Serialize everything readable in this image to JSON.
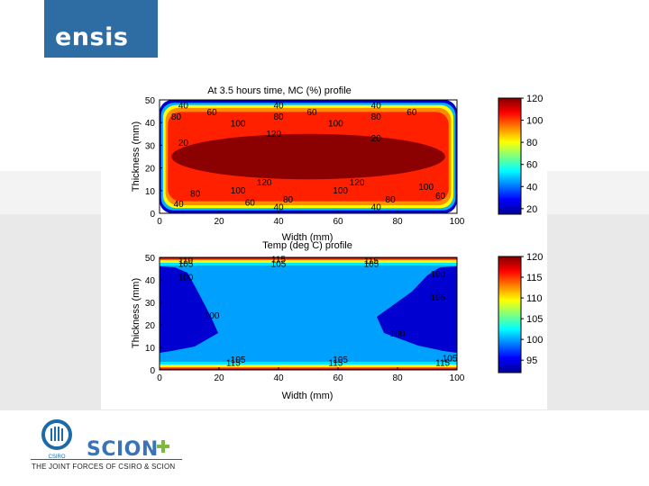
{
  "brand": {
    "logo_text": "ensis"
  },
  "footer": {
    "csiro_label": "CSIRO",
    "scion_label": "SCION",
    "tagline": "THE JOINT FORCES OF CSIRO & SCION"
  },
  "colors": {
    "brand_blue": "#2e6da4",
    "scion_blue": "#3a73b8",
    "scion_green": "#7cba3c"
  },
  "chart_data": [
    {
      "type": "heatmap",
      "title": "At 3.5 hours time, MC (%) profile",
      "xlabel": "Width (mm)",
      "ylabel": "Thickness (mm)",
      "xlim": [
        0,
        100
      ],
      "ylim": [
        0,
        50
      ],
      "x_ticks": [
        "0",
        "20",
        "40",
        "60",
        "80",
        "100"
      ],
      "y_ticks": [
        "0",
        "10",
        "20",
        "30",
        "40",
        "50"
      ],
      "colorbar": {
        "range": [
          15,
          120
        ],
        "ticks": [
          "20",
          "40",
          "60",
          "80",
          "100",
          "120"
        ]
      },
      "levels": [
        {
          "value": 20,
          "color": "#0000c8",
          "dx": 0,
          "dy": 0
        },
        {
          "value": 40,
          "color": "#00b4ff",
          "dx": 0.5,
          "dy": 1.3
        },
        {
          "value": 60,
          "color": "#ffff00",
          "dx": 1.2,
          "dy": 2.3
        },
        {
          "value": 80,
          "color": "#ff8c00",
          "dx": 2.0,
          "dy": 3.5
        },
        {
          "value": 100,
          "color": "#ff2000",
          "dx": 2.8,
          "dy": 5.3
        },
        {
          "value": 120,
          "color": "#8b0000",
          "dx": 4.0,
          "dy": 15.0
        }
      ],
      "contour_labels": [
        {
          "text": "40",
          "x": 10,
          "y": 47.5
        },
        {
          "text": "60",
          "x": 22,
          "y": 44.5
        },
        {
          "text": "80",
          "x": 7,
          "y": 42.5
        },
        {
          "text": "100",
          "x": 33,
          "y": 39.5
        },
        {
          "text": "40",
          "x": 50,
          "y": 47.5
        },
        {
          "text": "80",
          "x": 50,
          "y": 42.5
        },
        {
          "text": "60",
          "x": 64,
          "y": 44.5
        },
        {
          "text": "100",
          "x": 74,
          "y": 39.5
        },
        {
          "text": "40",
          "x": 91,
          "y": 47.5
        },
        {
          "text": "80",
          "x": 91,
          "y": 42.5
        },
        {
          "text": "60",
          "x": 106,
          "y": 44.5
        },
        {
          "text": "120",
          "x": 48,
          "y": 35
        },
        {
          "text": "20",
          "x": 91,
          "y": 33
        },
        {
          "text": "20",
          "x": 10,
          "y": 31
        },
        {
          "text": "120",
          "x": 44,
          "y": 13.5
        },
        {
          "text": "100",
          "x": 33,
          "y": 10
        },
        {
          "text": "120",
          "x": 83,
          "y": 13.5
        },
        {
          "text": "100",
          "x": 76,
          "y": 10
        },
        {
          "text": "100",
          "x": 112,
          "y": 11.5
        },
        {
          "text": "80",
          "x": 15,
          "y": 8.5
        },
        {
          "text": "60",
          "x": 38,
          "y": 4.5
        },
        {
          "text": "80",
          "x": 54,
          "y": 6
        },
        {
          "text": "80",
          "x": 97,
          "y": 6
        },
        {
          "text": "60",
          "x": 118,
          "y": 7.5
        },
        {
          "text": "40",
          "x": 50,
          "y": 2.5
        },
        {
          "text": "40",
          "x": 91,
          "y": 2.5
        },
        {
          "text": "40",
          "x": 8,
          "y": 4
        }
      ]
    },
    {
      "type": "heatmap",
      "title": "Temp (deg C) profile",
      "xlabel": "Width (mm)",
      "ylabel": "Thickness (mm)",
      "xlim": [
        0,
        100
      ],
      "ylim": [
        0,
        50
      ],
      "x_ticks": [
        "0",
        "20",
        "40",
        "60",
        "80",
        "100"
      ],
      "y_ticks": [
        "0",
        "10",
        "20",
        "30",
        "40",
        "50"
      ],
      "colorbar": {
        "range": [
          92,
          120
        ],
        "ticks": [
          "95",
          "100",
          "105",
          "110",
          "115",
          "120"
        ]
      },
      "contour_labels": [
        {
          "text": "110",
          "x": 11,
          "y": 48.5
        },
        {
          "text": "105",
          "x": 11,
          "y": 47
        },
        {
          "text": "115",
          "x": 50,
          "y": 49
        },
        {
          "text": "105",
          "x": 50,
          "y": 47
        },
        {
          "text": "115",
          "x": 89,
          "y": 48.5
        },
        {
          "text": "105",
          "x": 89,
          "y": 47
        },
        {
          "text": "100",
          "x": 117,
          "y": 42.5
        },
        {
          "text": "100",
          "x": 11,
          "y": 41
        },
        {
          "text": "105",
          "x": 117,
          "y": 32
        },
        {
          "text": "100",
          "x": 22,
          "y": 24
        },
        {
          "text": "100",
          "x": 100,
          "y": 16
        },
        {
          "text": "105",
          "x": 33,
          "y": 4.5
        },
        {
          "text": "105",
          "x": 76,
          "y": 4.5
        },
        {
          "text": "105",
          "x": 122,
          "y": 5
        },
        {
          "text": "115",
          "x": 31,
          "y": 3
        },
        {
          "text": "115",
          "x": 74,
          "y": 3
        },
        {
          "text": "115",
          "x": 119,
          "y": 3
        }
      ]
    }
  ]
}
